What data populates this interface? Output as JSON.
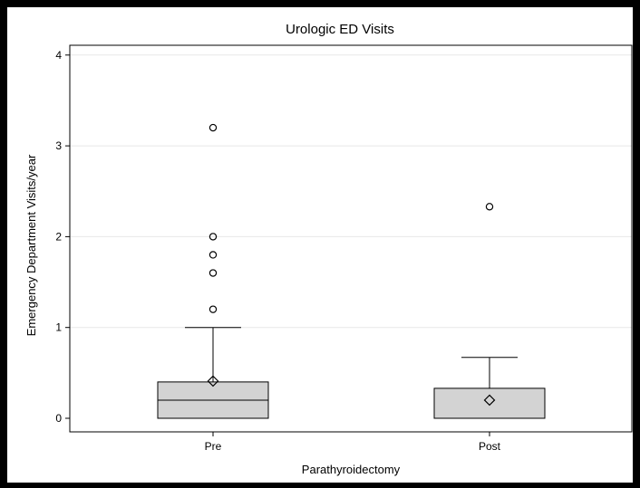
{
  "chart_data": {
    "type": "box",
    "title": "Urologic ED Visits",
    "xlabel": "Parathyroidectomy",
    "ylabel": "Emergency Department Visits/year",
    "categories": [
      "Pre",
      "Post"
    ],
    "ylim": [
      0,
      4
    ],
    "yticks": [
      "0",
      "1",
      "2",
      "3",
      "4"
    ],
    "grid": true,
    "boxes": [
      {
        "category": "Pre",
        "q1": 0,
        "median": 0.2,
        "q3": 0.4,
        "whisker_low": 0,
        "whisker_high": 1.0,
        "mean": 0.41,
        "outliers": [
          1.2,
          1.6,
          1.8,
          2.0,
          3.2
        ]
      },
      {
        "category": "Post",
        "q1": 0,
        "median": 0,
        "q3": 0.33,
        "whisker_low": 0,
        "whisker_high": 0.67,
        "mean": 0.2,
        "outliers": [
          2.33
        ]
      }
    ],
    "colors": {
      "box_fill": "#d3d3d3",
      "stroke": "#000000",
      "grid": "#e8e8e8",
      "border": "#000000"
    }
  }
}
